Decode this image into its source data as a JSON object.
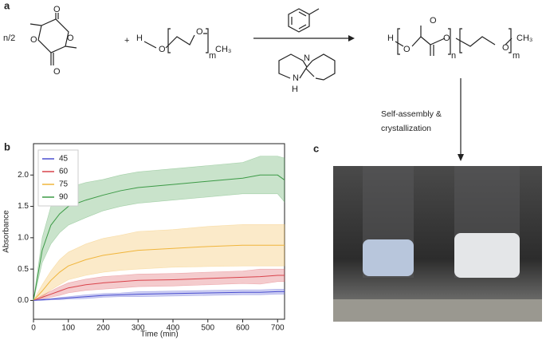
{
  "panel_labels": [
    "a",
    "b",
    "c"
  ],
  "scheme_labels": [
    "n/2",
    "O",
    "O",
    "O",
    "O",
    "+",
    "H",
    "O",
    "O",
    "m",
    "CH₃",
    "N",
    "N",
    "H",
    "H",
    "O",
    "O",
    "O",
    "n",
    "O",
    "m",
    "CH₃",
    "Self-assembly &",
    "crystallization"
  ],
  "chart_data": {
    "type": "line",
    "xlabel": "Time (min)",
    "ylabel": "Absorbance",
    "x": [
      0,
      25,
      50,
      75,
      100,
      150,
      200,
      250,
      300,
      400,
      500,
      600,
      650,
      700,
      720
    ],
    "series": [
      {
        "name": "45",
        "color": "#4a4fd0",
        "values": [
          0,
          0.01,
          0.02,
          0.03,
          0.04,
          0.06,
          0.08,
          0.09,
          0.1,
          0.11,
          0.12,
          0.13,
          0.13,
          0.14,
          0.14
        ],
        "errors": [
          0,
          0.01,
          0.01,
          0.02,
          0.02,
          0.03,
          0.03,
          0.03,
          0.04,
          0.04,
          0.04,
          0.04,
          0.04,
          0.04,
          0.04
        ]
      },
      {
        "name": "60",
        "color": "#d9434b",
        "values": [
          0,
          0.05,
          0.1,
          0.15,
          0.2,
          0.25,
          0.28,
          0.3,
          0.32,
          0.33,
          0.35,
          0.37,
          0.38,
          0.4,
          0.4
        ],
        "errors": [
          0,
          0.03,
          0.05,
          0.07,
          0.08,
          0.09,
          0.1,
          0.1,
          0.1,
          0.1,
          0.1,
          0.1,
          0.12,
          0.1,
          0.1
        ]
      },
      {
        "name": "75",
        "color": "#f0b53c",
        "values": [
          0,
          0.15,
          0.32,
          0.45,
          0.55,
          0.65,
          0.72,
          0.76,
          0.8,
          0.83,
          0.86,
          0.88,
          0.88,
          0.88,
          0.88
        ],
        "errors": [
          0,
          0.1,
          0.15,
          0.2,
          0.22,
          0.25,
          0.27,
          0.28,
          0.3,
          0.3,
          0.32,
          0.33,
          0.33,
          0.33,
          0.33
        ]
      },
      {
        "name": "90",
        "color": "#3c9a46",
        "values": [
          0,
          0.8,
          1.2,
          1.38,
          1.5,
          1.6,
          1.68,
          1.75,
          1.8,
          1.85,
          1.9,
          1.95,
          2.0,
          2.0,
          1.92
        ],
        "errors": [
          0,
          0.2,
          0.3,
          0.3,
          0.3,
          0.28,
          0.25,
          0.25,
          0.25,
          0.25,
          0.25,
          0.25,
          0.3,
          0.3,
          0.35
        ]
      }
    ],
    "xlim": [
      0,
      720
    ],
    "xticks": [
      0,
      100,
      200,
      300,
      400,
      500,
      600,
      700
    ],
    "ylim": [
      -0.3,
      2.5
    ],
    "yticks": [
      {
        "value": 0,
        "label": "0.0"
      },
      0.5,
      {
        "value": 1,
        "label": "1.0"
      },
      1.5,
      {
        "value": 2,
        "label": "2.0"
      }
    ],
    "legend": "upper left"
  }
}
